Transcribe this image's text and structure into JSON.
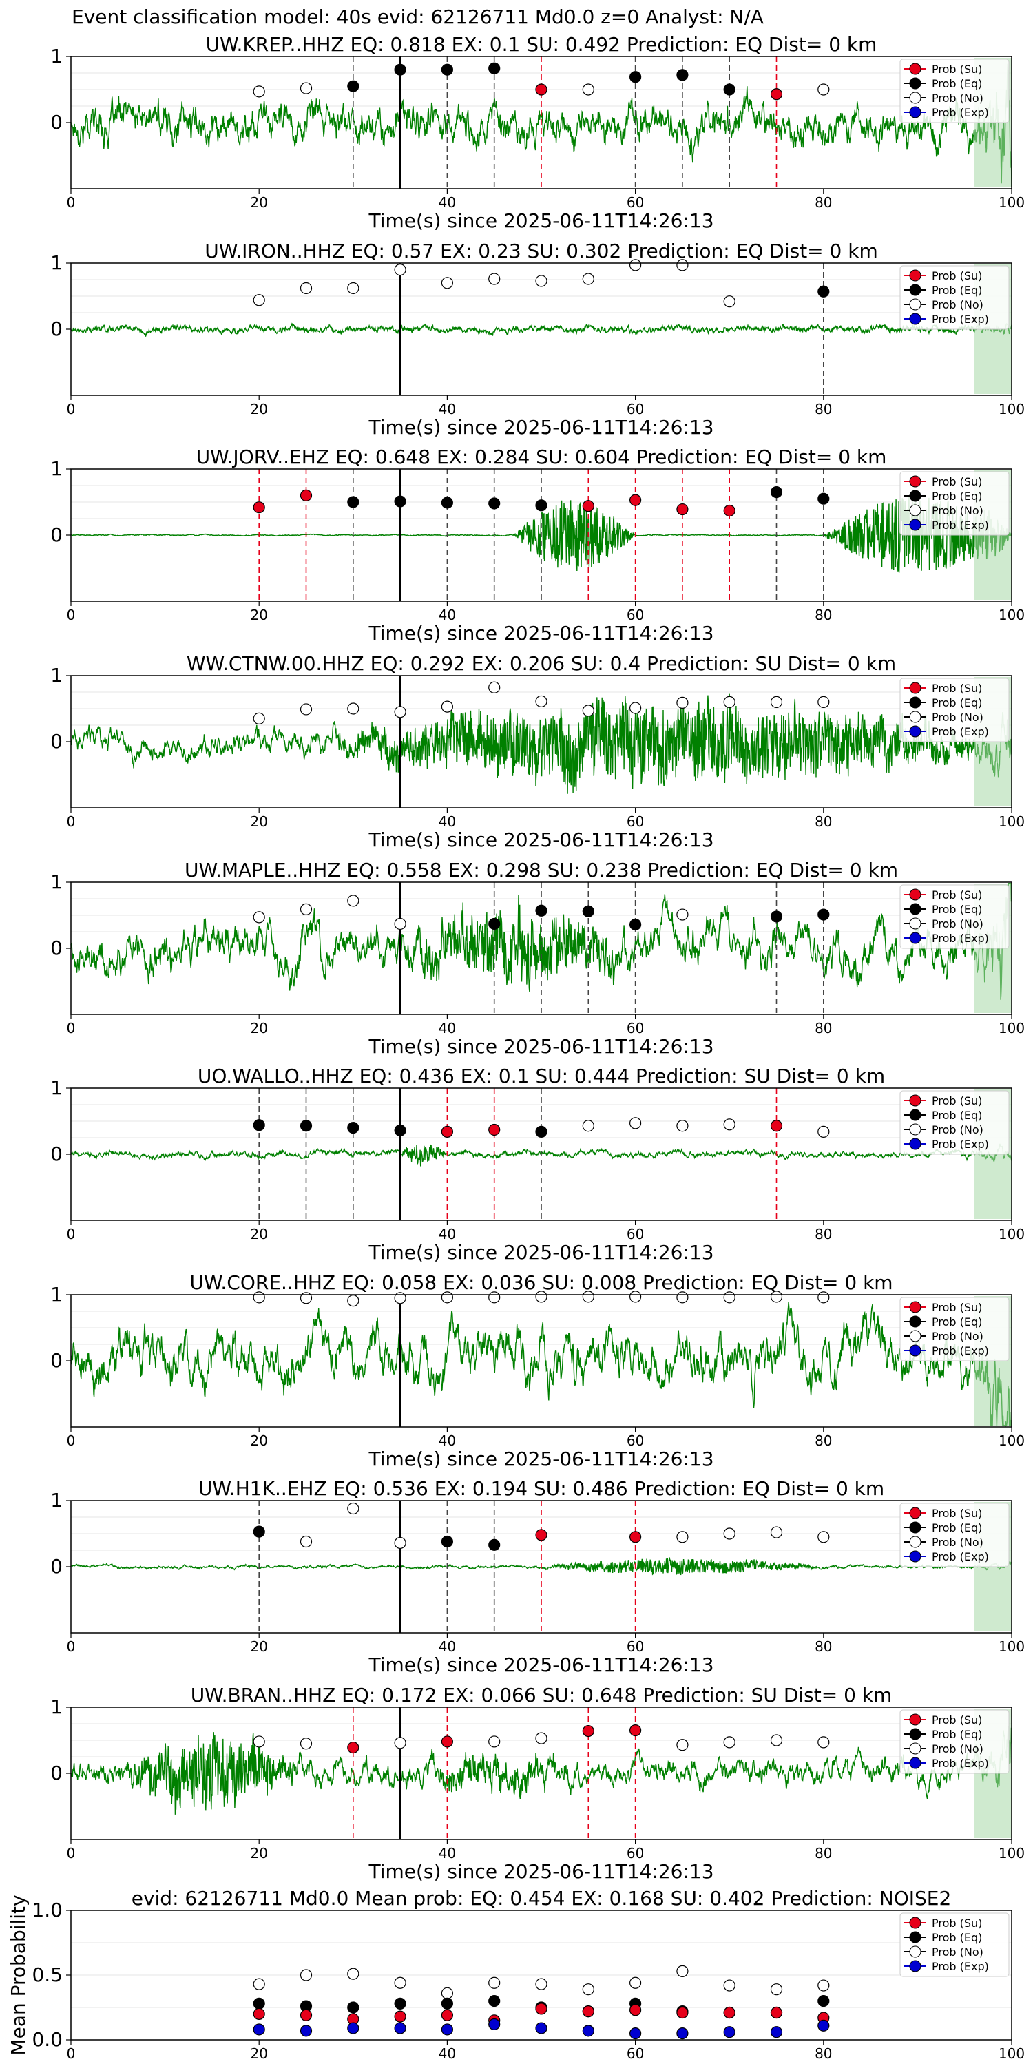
{
  "figure": {
    "title": "Event classification model: 40s evid: 62126711 Md0.0 z=0 Analyst: N/A"
  },
  "legend_labels": [
    "Prob (Su)",
    "Prob (Eq)",
    "Prob (No)",
    "Prob (Exp)"
  ],
  "colors": {
    "su": "#e6001a",
    "eq": "#000000",
    "no": "#ffffff",
    "exp": "#0000d0",
    "trace": "#008000",
    "trace_light": "#a8d8a8",
    "red_line": "#e6001a",
    "black_line": "#444444"
  },
  "chart_data": [
    {
      "type": "line",
      "station": "UW.KREP..HHZ",
      "title": "UW.KREP..HHZ   EQ: 0.818  EX: 0.1  SU: 0.492   Prediction: EQ    Dist= 0 km",
      "xlabel": "Time(s) since 2025-06-11T14:26:13",
      "xlim": [
        0,
        100
      ],
      "ylim": [
        -1,
        1
      ],
      "xticks": [
        "0",
        "20",
        "40",
        "60",
        "80",
        "100"
      ],
      "yticks": [
        "1",
        "0"
      ],
      "legend": "top-right",
      "pick_time": 35,
      "trace": {
        "amplitude": 0.35,
        "noise": 0.55,
        "burst": [],
        "taper": 1.0
      },
      "points": [
        {
          "t": 20,
          "p": 0.47,
          "class": "no"
        },
        {
          "t": 25,
          "p": 0.52,
          "class": "no"
        },
        {
          "t": 30,
          "p": 0.55,
          "class": "eq"
        },
        {
          "t": 35,
          "p": 0.8,
          "class": "eq"
        },
        {
          "t": 40,
          "p": 0.8,
          "class": "eq"
        },
        {
          "t": 45,
          "p": 0.82,
          "class": "eq"
        },
        {
          "t": 50,
          "p": 0.5,
          "class": "su"
        },
        {
          "t": 55,
          "p": 0.5,
          "class": "no"
        },
        {
          "t": 60,
          "p": 0.69,
          "class": "eq"
        },
        {
          "t": 65,
          "p": 0.72,
          "class": "eq"
        },
        {
          "t": 70,
          "p": 0.5,
          "class": "eq"
        },
        {
          "t": 75,
          "p": 0.43,
          "class": "su"
        },
        {
          "t": 80,
          "p": 0.5,
          "class": "no"
        }
      ]
    },
    {
      "type": "line",
      "station": "UW.IRON..HHZ",
      "title": "UW.IRON..HHZ   EQ: 0.57  EX: 0.23  SU: 0.302   Prediction: EQ    Dist= 0 km",
      "xlabel": "Time(s) since 2025-06-11T14:26:13",
      "xlim": [
        0,
        100
      ],
      "ylim": [
        -1,
        1
      ],
      "xticks": [
        "0",
        "20",
        "40",
        "60",
        "80",
        "100"
      ],
      "yticks": [
        "1",
        "0"
      ],
      "legend": "top-right",
      "pick_time": 35,
      "trace": {
        "amplitude": 0.05,
        "noise": 0.15,
        "burst": [],
        "taper": 0.3
      },
      "points": [
        {
          "t": 20,
          "p": 0.44,
          "class": "no"
        },
        {
          "t": 25,
          "p": 0.62,
          "class": "no"
        },
        {
          "t": 30,
          "p": 0.62,
          "class": "no"
        },
        {
          "t": 35,
          "p": 0.9,
          "class": "no"
        },
        {
          "t": 40,
          "p": 0.7,
          "class": "no"
        },
        {
          "t": 45,
          "p": 0.76,
          "class": "no"
        },
        {
          "t": 50,
          "p": 0.73,
          "class": "no"
        },
        {
          "t": 55,
          "p": 0.76,
          "class": "no"
        },
        {
          "t": 60,
          "p": 0.97,
          "class": "no"
        },
        {
          "t": 65,
          "p": 0.97,
          "class": "no"
        },
        {
          "t": 70,
          "p": 0.42,
          "class": "no"
        },
        {
          "t": 80,
          "p": 0.57,
          "class": "eq"
        }
      ]
    },
    {
      "type": "line",
      "station": "UW.JORV..EHZ",
      "title": "UW.JORV..EHZ   EQ: 0.648  EX: 0.284  SU: 0.604   Prediction: EQ    Dist= 0 km",
      "xlabel": "Time(s) since 2025-06-11T14:26:13",
      "xlim": [
        0,
        100
      ],
      "ylim": [
        -1,
        1
      ],
      "xticks": [
        "0",
        "20",
        "40",
        "60",
        "80",
        "100"
      ],
      "yticks": [
        "1",
        "0"
      ],
      "legend": "top-right",
      "pick_time": 35,
      "trace": {
        "amplitude": 0.01,
        "noise": 0.02,
        "burst": [
          [
            47,
            60,
            0.55
          ],
          [
            80,
            100,
            0.6
          ]
        ],
        "taper": 0.8
      },
      "points": [
        {
          "t": 20,
          "p": 0.42,
          "class": "su"
        },
        {
          "t": 25,
          "p": 0.6,
          "class": "su"
        },
        {
          "t": 30,
          "p": 0.5,
          "class": "eq"
        },
        {
          "t": 35,
          "p": 0.51,
          "class": "eq"
        },
        {
          "t": 40,
          "p": 0.49,
          "class": "eq"
        },
        {
          "t": 45,
          "p": 0.48,
          "class": "eq"
        },
        {
          "t": 50,
          "p": 0.45,
          "class": "eq"
        },
        {
          "t": 55,
          "p": 0.44,
          "class": "su"
        },
        {
          "t": 60,
          "p": 0.53,
          "class": "su"
        },
        {
          "t": 65,
          "p": 0.39,
          "class": "su"
        },
        {
          "t": 70,
          "p": 0.37,
          "class": "su"
        },
        {
          "t": 75,
          "p": 0.65,
          "class": "eq"
        },
        {
          "t": 80,
          "p": 0.55,
          "class": "eq"
        }
      ]
    },
    {
      "type": "line",
      "station": "WW.CTNW.00.HHZ",
      "title": "WW.CTNW.00.HHZ   EQ: 0.292  EX: 0.206  SU: 0.4   Prediction: SU    Dist= 0 km",
      "xlabel": "Time(s) since 2025-06-11T14:26:13",
      "xlim": [
        0,
        100
      ],
      "ylim": [
        -1,
        1
      ],
      "xticks": [
        "0",
        "20",
        "40",
        "60",
        "80",
        "100"
      ],
      "yticks": [
        "1",
        "0"
      ],
      "legend": "top-right",
      "pick_time": 35,
      "trace": {
        "amplitude": 0.25,
        "noise": 0.2,
        "burst": [
          [
            25,
            100,
            0.55
          ]
        ],
        "taper": 0.9
      },
      "points": [
        {
          "t": 20,
          "p": 0.35,
          "class": "no"
        },
        {
          "t": 25,
          "p": 0.49,
          "class": "no"
        },
        {
          "t": 30,
          "p": 0.5,
          "class": "no"
        },
        {
          "t": 35,
          "p": 0.45,
          "class": "no"
        },
        {
          "t": 40,
          "p": 0.53,
          "class": "no"
        },
        {
          "t": 45,
          "p": 0.82,
          "class": "no"
        },
        {
          "t": 50,
          "p": 0.61,
          "class": "no"
        },
        {
          "t": 55,
          "p": 0.47,
          "class": "no"
        },
        {
          "t": 60,
          "p": 0.51,
          "class": "no"
        },
        {
          "t": 65,
          "p": 0.59,
          "class": "no"
        },
        {
          "t": 70,
          "p": 0.6,
          "class": "no"
        },
        {
          "t": 75,
          "p": 0.6,
          "class": "no"
        },
        {
          "t": 80,
          "p": 0.6,
          "class": "no"
        }
      ]
    },
    {
      "type": "line",
      "station": "UW.MAPLE..HHZ",
      "title": "UW.MAPLE..HHZ   EQ: 0.558  EX: 0.298  SU: 0.238   Prediction: EQ    Dist= 0 km",
      "xlabel": "Time(s) since 2025-06-11T14:26:13",
      "xlim": [
        0,
        100
      ],
      "ylim": [
        -1,
        1
      ],
      "xticks": [
        "0",
        "20",
        "40",
        "60",
        "80",
        "100"
      ],
      "yticks": [
        "1",
        "0"
      ],
      "legend": "top-right",
      "pick_time": 35,
      "trace": {
        "amplitude": 0.45,
        "noise": 0.35,
        "burst": [
          [
            35,
            60,
            0.4
          ]
        ],
        "taper": 1.0
      },
      "points": [
        {
          "t": 20,
          "p": 0.47,
          "class": "no"
        },
        {
          "t": 25,
          "p": 0.59,
          "class": "no"
        },
        {
          "t": 30,
          "p": 0.72,
          "class": "no"
        },
        {
          "t": 35,
          "p": 0.37,
          "class": "no"
        },
        {
          "t": 45,
          "p": 0.37,
          "class": "eq"
        },
        {
          "t": 50,
          "p": 0.57,
          "class": "eq"
        },
        {
          "t": 55,
          "p": 0.56,
          "class": "eq"
        },
        {
          "t": 60,
          "p": 0.36,
          "class": "eq"
        },
        {
          "t": 65,
          "p": 0.51,
          "class": "no"
        },
        {
          "t": 75,
          "p": 0.48,
          "class": "eq"
        },
        {
          "t": 80,
          "p": 0.51,
          "class": "eq"
        }
      ]
    },
    {
      "type": "line",
      "station": "UO.WALLO..HHZ",
      "title": "UO.WALLO..HHZ   EQ: 0.436  EX: 0.1  SU: 0.444   Prediction: SU    Dist= 0 km",
      "xlabel": "Time(s) since 2025-06-11T14:26:13",
      "xlim": [
        0,
        100
      ],
      "ylim": [
        -1,
        1
      ],
      "xticks": [
        "0",
        "20",
        "40",
        "60",
        "80",
        "100"
      ],
      "yticks": [
        "1",
        "0"
      ],
      "legend": "top-right",
      "pick_time": 35,
      "trace": {
        "amplitude": 0.06,
        "noise": 0.08,
        "burst": [
          [
            35,
            40,
            0.15
          ]
        ],
        "taper": 0.7
      },
      "points": [
        {
          "t": 20,
          "p": 0.44,
          "class": "eq"
        },
        {
          "t": 25,
          "p": 0.43,
          "class": "eq"
        },
        {
          "t": 30,
          "p": 0.4,
          "class": "eq"
        },
        {
          "t": 35,
          "p": 0.36,
          "class": "eq"
        },
        {
          "t": 40,
          "p": 0.34,
          "class": "su"
        },
        {
          "t": 45,
          "p": 0.37,
          "class": "su"
        },
        {
          "t": 50,
          "p": 0.34,
          "class": "eq"
        },
        {
          "t": 55,
          "p": 0.43,
          "class": "no"
        },
        {
          "t": 60,
          "p": 0.47,
          "class": "no"
        },
        {
          "t": 65,
          "p": 0.43,
          "class": "no"
        },
        {
          "t": 70,
          "p": 0.45,
          "class": "no"
        },
        {
          "t": 75,
          "p": 0.43,
          "class": "su"
        },
        {
          "t": 80,
          "p": 0.34,
          "class": "no"
        }
      ]
    },
    {
      "type": "line",
      "station": "UW.CORE..HHZ",
      "title": "UW.CORE..HHZ   EQ: 0.058  EX: 0.036  SU: 0.008   Prediction: EQ    Dist= 0 km",
      "xlabel": "Time(s) since 2025-06-11T14:26:13",
      "xlim": [
        0,
        100
      ],
      "ylim": [
        -1,
        1
      ],
      "xticks": [
        "0",
        "20",
        "40",
        "60",
        "80",
        "100"
      ],
      "yticks": [
        "1",
        "0"
      ],
      "legend": "top-right",
      "pick_time": 35,
      "trace": {
        "amplitude": 0.55,
        "noise": 0.25,
        "burst": [],
        "taper": 1.0
      },
      "points": [
        {
          "t": 20,
          "p": 0.96,
          "class": "no"
        },
        {
          "t": 25,
          "p": 0.95,
          "class": "no"
        },
        {
          "t": 30,
          "p": 0.91,
          "class": "no"
        },
        {
          "t": 35,
          "p": 0.95,
          "class": "no"
        },
        {
          "t": 40,
          "p": 0.96,
          "class": "no"
        },
        {
          "t": 45,
          "p": 0.96,
          "class": "no"
        },
        {
          "t": 50,
          "p": 0.97,
          "class": "no"
        },
        {
          "t": 55,
          "p": 0.97,
          "class": "no"
        },
        {
          "t": 60,
          "p": 0.97,
          "class": "no"
        },
        {
          "t": 65,
          "p": 0.96,
          "class": "no"
        },
        {
          "t": 70,
          "p": 0.96,
          "class": "no"
        },
        {
          "t": 75,
          "p": 0.97,
          "class": "no"
        },
        {
          "t": 80,
          "p": 0.96,
          "class": "no"
        }
      ]
    },
    {
      "type": "line",
      "station": "UW.H1K..EHZ",
      "title": "UW.H1K..EHZ   EQ: 0.536  EX: 0.194  SU: 0.486   Prediction: EQ    Dist= 0 km",
      "xlabel": "Time(s) since 2025-06-11T14:26:13",
      "xlim": [
        0,
        100
      ],
      "ylim": [
        -1,
        1
      ],
      "xticks": [
        "0",
        "20",
        "40",
        "60",
        "80",
        "100"
      ],
      "yticks": [
        "1",
        "0"
      ],
      "legend": "top-right",
      "pick_time": 35,
      "trace": {
        "amplitude": 0.03,
        "noise": 0.04,
        "burst": [
          [
            50,
            80,
            0.12
          ]
        ],
        "taper": 0.5
      },
      "points": [
        {
          "t": 20,
          "p": 0.53,
          "class": "eq"
        },
        {
          "t": 25,
          "p": 0.38,
          "class": "no"
        },
        {
          "t": 30,
          "p": 0.88,
          "class": "no"
        },
        {
          "t": 35,
          "p": 0.36,
          "class": "no"
        },
        {
          "t": 40,
          "p": 0.38,
          "class": "eq"
        },
        {
          "t": 45,
          "p": 0.33,
          "class": "eq"
        },
        {
          "t": 50,
          "p": 0.48,
          "class": "su"
        },
        {
          "t": 60,
          "p": 0.45,
          "class": "su"
        },
        {
          "t": 65,
          "p": 0.45,
          "class": "no"
        },
        {
          "t": 70,
          "p": 0.5,
          "class": "no"
        },
        {
          "t": 75,
          "p": 0.52,
          "class": "no"
        },
        {
          "t": 80,
          "p": 0.45,
          "class": "no"
        }
      ]
    },
    {
      "type": "line",
      "station": "UW.BRAN..HHZ",
      "title": "UW.BRAN..HHZ   EQ: 0.172  EX: 0.066  SU: 0.648   Prediction: SU    Dist= 0 km",
      "xlabel": "Time(s) since 2025-06-11T14:26:13",
      "xlim": [
        0,
        100
      ],
      "ylim": [
        -1,
        1
      ],
      "xticks": [
        "0",
        "20",
        "40",
        "60",
        "80",
        "100"
      ],
      "yticks": [
        "1",
        "0"
      ],
      "legend": "top-right",
      "pick_time": 35,
      "trace": {
        "amplitude": 0.25,
        "noise": 0.3,
        "burst": [
          [
            5,
            25,
            0.5
          ],
          [
            35,
            55,
            0.15
          ]
        ],
        "taper": 0.6
      },
      "points": [
        {
          "t": 20,
          "p": 0.48,
          "class": "no"
        },
        {
          "t": 25,
          "p": 0.45,
          "class": "no"
        },
        {
          "t": 30,
          "p": 0.39,
          "class": "su"
        },
        {
          "t": 35,
          "p": 0.46,
          "class": "no"
        },
        {
          "t": 40,
          "p": 0.48,
          "class": "su"
        },
        {
          "t": 45,
          "p": 0.48,
          "class": "no"
        },
        {
          "t": 50,
          "p": 0.53,
          "class": "no"
        },
        {
          "t": 55,
          "p": 0.64,
          "class": "su"
        },
        {
          "t": 60,
          "p": 0.65,
          "class": "su"
        },
        {
          "t": 65,
          "p": 0.43,
          "class": "no"
        },
        {
          "t": 70,
          "p": 0.47,
          "class": "no"
        },
        {
          "t": 75,
          "p": 0.5,
          "class": "no"
        },
        {
          "t": 80,
          "p": 0.47,
          "class": "no"
        }
      ]
    },
    {
      "type": "scatter",
      "title": "evid: 62126711  Md0.0   Mean prob:    EQ: 0.454  EX: 0.168  SU: 0.402   Prediction: NOISE2",
      "ylabel": "Mean Probability",
      "xlim": [
        0,
        100
      ],
      "ylim": [
        0,
        1
      ],
      "xticks": [
        "0",
        "20",
        "40",
        "60",
        "80",
        "100"
      ],
      "yticks": [
        "1.0",
        "0.5",
        "0.0"
      ],
      "legend": "top-right",
      "series": [
        {
          "class": "no",
          "x": [
            20,
            25,
            30,
            35,
            40,
            45,
            50,
            55,
            60,
            65,
            70,
            75,
            80
          ],
          "y": [
            0.43,
            0.5,
            0.51,
            0.44,
            0.36,
            0.44,
            0.43,
            0.39,
            0.44,
            0.53,
            0.42,
            0.39,
            0.42
          ]
        },
        {
          "class": "eq",
          "x": [
            20,
            25,
            30,
            35,
            40,
            45,
            50,
            55,
            60,
            65,
            70,
            75,
            80
          ],
          "y": [
            0.28,
            0.26,
            0.25,
            0.28,
            0.28,
            0.3,
            0.25,
            0.22,
            0.28,
            0.22,
            0.21,
            0.21,
            0.3
          ]
        },
        {
          "class": "su",
          "x": [
            20,
            25,
            30,
            35,
            40,
            45,
            50,
            55,
            60,
            65,
            70,
            75,
            80
          ],
          "y": [
            0.2,
            0.19,
            0.16,
            0.18,
            0.19,
            0.15,
            0.24,
            0.22,
            0.23,
            0.21,
            0.21,
            0.21,
            0.17
          ]
        },
        {
          "class": "exp",
          "x": [
            20,
            25,
            30,
            35,
            40,
            45,
            50,
            55,
            60,
            65,
            70,
            75,
            80
          ],
          "y": [
            0.08,
            0.07,
            0.09,
            0.09,
            0.08,
            0.12,
            0.09,
            0.07,
            0.05,
            0.05,
            0.06,
            0.06,
            0.11
          ]
        }
      ]
    }
  ]
}
